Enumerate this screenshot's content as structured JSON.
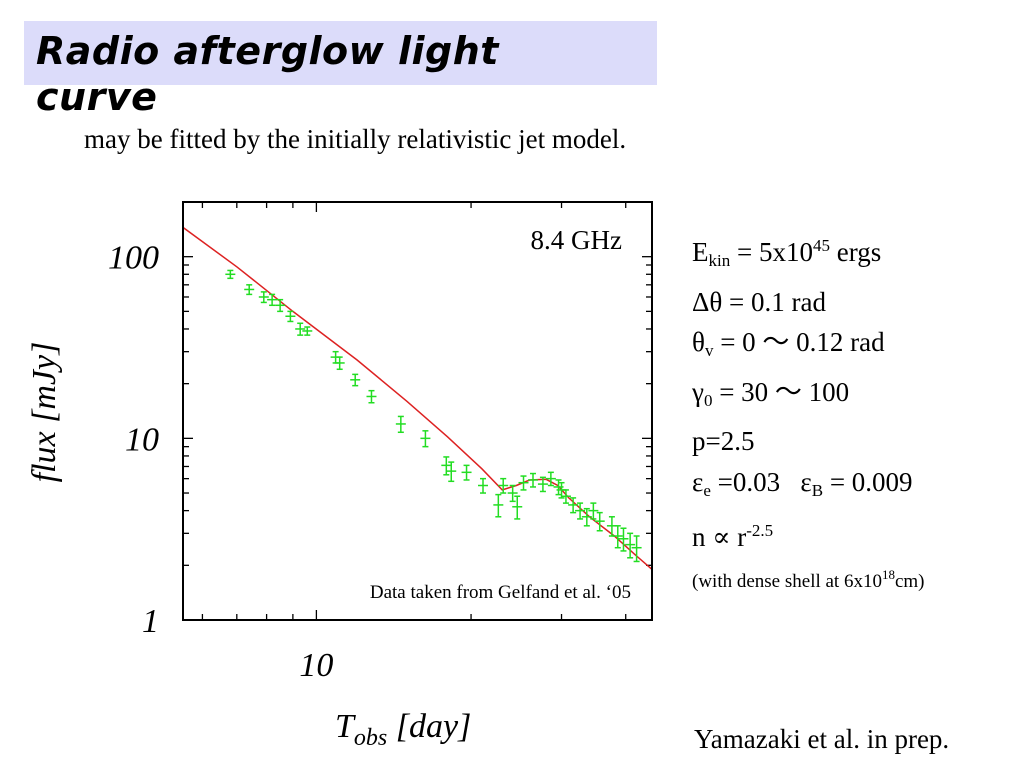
{
  "slide": {
    "title": "Radio afterglow light curve",
    "subtitle": "may be fitted by the initially relativistic jet model.",
    "credit": "Yamazaki et al. in prep."
  },
  "params": {
    "ekin": {
      "symbol": "E",
      "sub": "kin",
      "text": " = 5x10",
      "sup": "45",
      "tail": " ergs"
    },
    "dtheta": {
      "text": "Δθ = 0.1 rad"
    },
    "thetav": {
      "symbol": "θ",
      "sub": "v",
      "text": " = 0 ～ 0.12 rad"
    },
    "gamma0": {
      "symbol": "γ",
      "sub": "0",
      "text": " = 30 ～ 100"
    },
    "p": {
      "text": "p=2.5"
    },
    "eps": {
      "e_symbol": "ε",
      "e_sub": "e",
      "e_text": " =0.03",
      "b_symbol": "ε",
      "b_sub": "B",
      "b_text": " = 0.009"
    },
    "density": {
      "text": "n ∝ r",
      "sup": "-2.5"
    },
    "shell": {
      "text": "(with dense shell at 6x10",
      "sup": "18",
      "tail": "cm)"
    }
  },
  "chart_data": {
    "type": "scatter",
    "xlabel": "T",
    "xlabel_sub": "obs",
    "xlabel_tail": " [day]",
    "ylabel": "flux [mJy]",
    "x_scale": "log",
    "y_scale": "log",
    "xlim": [
      5.5,
      45
    ],
    "ylim": [
      1,
      200
    ],
    "x_ticks": [
      {
        "value": 10,
        "label": "10"
      }
    ],
    "y_ticks": [
      {
        "value": 1,
        "label": "1"
      },
      {
        "value": 10,
        "label": "10"
      },
      {
        "value": 100,
        "label": "100"
      }
    ],
    "annotations": {
      "frequency": "8.4 GHz",
      "data_source": "Data taken from Gelfand et al. ‘05"
    },
    "series": [
      {
        "kind": "data",
        "color": "#22dd22",
        "points": [
          {
            "x": 6.8,
            "y": 80,
            "err": 4
          },
          {
            "x": 7.4,
            "y": 66,
            "err": 4
          },
          {
            "x": 7.9,
            "y": 60,
            "err": 4
          },
          {
            "x": 8.2,
            "y": 58,
            "err": 4
          },
          {
            "x": 8.5,
            "y": 54,
            "err": 4
          },
          {
            "x": 8.9,
            "y": 47,
            "err": 3
          },
          {
            "x": 9.3,
            "y": 40,
            "err": 3
          },
          {
            "x": 9.6,
            "y": 39,
            "err": 2
          },
          {
            "x": 10.9,
            "y": 28,
            "err": 2
          },
          {
            "x": 11.1,
            "y": 26,
            "err": 2
          },
          {
            "x": 11.9,
            "y": 21,
            "err": 1.5
          },
          {
            "x": 12.8,
            "y": 17,
            "err": 1.3
          },
          {
            "x": 14.6,
            "y": 12,
            "err": 1.2
          },
          {
            "x": 16.3,
            "y": 10,
            "err": 1.0
          },
          {
            "x": 17.9,
            "y": 7.1,
            "err": 0.8
          },
          {
            "x": 18.3,
            "y": 6.6,
            "err": 0.8
          },
          {
            "x": 19.6,
            "y": 6.5,
            "err": 0.6
          },
          {
            "x": 21.1,
            "y": 5.5,
            "err": 0.5
          },
          {
            "x": 22.6,
            "y": 4.3,
            "err": 0.6
          },
          {
            "x": 23.1,
            "y": 5.5,
            "err": 0.5
          },
          {
            "x": 24.1,
            "y": 5.0,
            "err": 0.5
          },
          {
            "x": 24.6,
            "y": 4.2,
            "err": 0.6
          },
          {
            "x": 25.3,
            "y": 5.7,
            "err": 0.5
          },
          {
            "x": 26.4,
            "y": 5.9,
            "err": 0.5
          },
          {
            "x": 27.6,
            "y": 5.6,
            "err": 0.5
          },
          {
            "x": 28.6,
            "y": 6.0,
            "err": 0.5
          },
          {
            "x": 29.6,
            "y": 5.4,
            "err": 0.5
          },
          {
            "x": 30.0,
            "y": 5.2,
            "err": 0.5
          },
          {
            "x": 30.6,
            "y": 4.8,
            "err": 0.4
          },
          {
            "x": 31.6,
            "y": 4.3,
            "err": 0.4
          },
          {
            "x": 32.6,
            "y": 4.0,
            "err": 0.4
          },
          {
            "x": 33.6,
            "y": 3.7,
            "err": 0.4
          },
          {
            "x": 34.6,
            "y": 4.0,
            "err": 0.4
          },
          {
            "x": 35.6,
            "y": 3.5,
            "err": 0.4
          },
          {
            "x": 37.6,
            "y": 3.3,
            "err": 0.4
          },
          {
            "x": 38.6,
            "y": 2.9,
            "err": 0.4
          },
          {
            "x": 39.6,
            "y": 2.8,
            "err": 0.4
          },
          {
            "x": 40.8,
            "y": 2.6,
            "err": 0.4
          },
          {
            "x": 42.0,
            "y": 2.5,
            "err": 0.4
          }
        ]
      },
      {
        "kind": "model",
        "color": "#dd2222",
        "x": [
          5.5,
          7,
          9,
          12,
          15,
          18,
          21,
          23,
          24.5,
          26,
          28,
          29.5,
          31,
          34,
          38,
          42,
          45
        ],
        "y": [
          145,
          88,
          50,
          27,
          16,
          10.2,
          6.8,
          5.2,
          5.5,
          5.9,
          5.95,
          5.5,
          4.7,
          3.7,
          2.9,
          2.25,
          1.9
        ]
      }
    ]
  }
}
